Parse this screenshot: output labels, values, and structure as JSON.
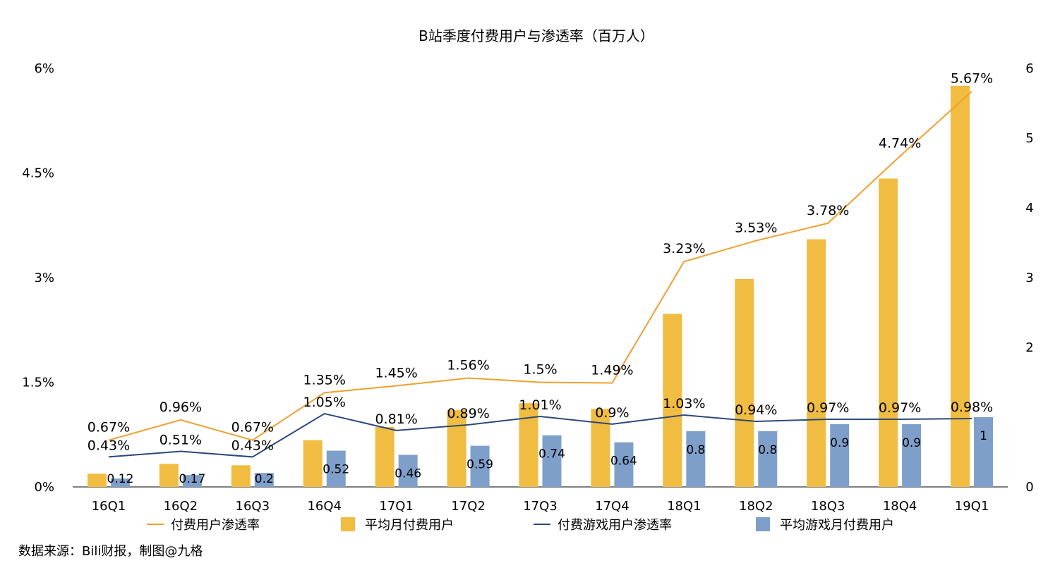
{
  "chart_data": {
    "type": "bar",
    "title": "B站季度付费用户与渗透率（百万人）",
    "categories": [
      "16Q1",
      "16Q2",
      "16Q3",
      "16Q4",
      "17Q1",
      "17Q2",
      "17Q3",
      "17Q4",
      "18Q1",
      "18Q2",
      "18Q3",
      "18Q4",
      "19Q1"
    ],
    "left_axis": {
      "ticks": [
        "0%",
        "1.5%",
        "3%",
        "4.5%",
        "6%"
      ],
      "ylim": [
        0,
        6
      ]
    },
    "right_axis": {
      "ticks": [
        "0",
        "2",
        "3",
        "4",
        "5",
        "6"
      ],
      "ylim": [
        0,
        6
      ]
    },
    "series": [
      {
        "name": "付费用户渗透率",
        "type": "line",
        "axis": "left",
        "color": "#F0A030",
        "values": [
          0.67,
          0.96,
          0.67,
          1.35,
          1.45,
          1.56,
          1.5,
          1.49,
          3.23,
          3.53,
          3.78,
          4.74,
          5.67
        ],
        "labels": [
          "0.67%",
          "0.96%",
          "0.67%",
          "1.35%",
          "1.45%",
          "1.56%",
          "1.5%",
          "1.49%",
          "3.23%",
          "3.53%",
          "3.78%",
          "4.74%",
          "5.67%"
        ]
      },
      {
        "name": "平均月付费用户",
        "type": "bar",
        "axis": "right",
        "color": "#F0BC41",
        "values": [
          0.19,
          0.33,
          0.31,
          0.67,
          0.86,
          1.1,
          1.2,
          1.12,
          2.48,
          2.98,
          3.55,
          4.42,
          5.75
        ]
      },
      {
        "name": "付费游戏用户渗透率",
        "type": "line",
        "axis": "left",
        "color": "#2C4A78",
        "values": [
          0.43,
          0.51,
          0.43,
          1.05,
          0.81,
          0.89,
          1.01,
          0.9,
          1.03,
          0.94,
          0.97,
          0.97,
          0.98
        ],
        "labels": [
          "0.43%",
          "0.51%",
          "0.43%",
          "1.05%",
          "0.81%",
          "0.89%",
          "1.01%",
          "0.9%",
          "1.03%",
          "0.94%",
          "0.97%",
          "0.97%",
          "0.98%"
        ]
      },
      {
        "name": "平均游戏月付费用户",
        "type": "bar",
        "axis": "right",
        "color": "#7F9FCB",
        "values": [
          0.12,
          0.17,
          0.2,
          0.52,
          0.46,
          0.59,
          0.74,
          0.64,
          0.8,
          0.8,
          0.9,
          0.9,
          1
        ],
        "labels": [
          "0.12",
          "0.17",
          "0.2",
          "0.52",
          "0.46",
          "0.59",
          "0.74",
          "0.64",
          "0.8",
          "0.8",
          "0.9",
          "0.9",
          "1"
        ]
      }
    ],
    "legend": {
      "placement": "bottom"
    },
    "grid": false
  },
  "source_note": "数据来源：Bili财报，制图@九格"
}
